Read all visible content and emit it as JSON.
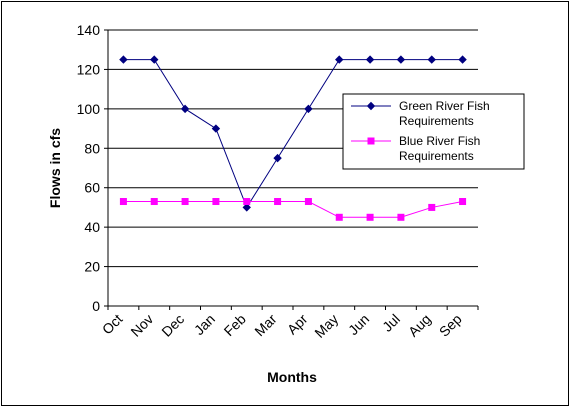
{
  "chart_data": {
    "type": "line",
    "categories": [
      "Oct",
      "Nov",
      "Dec",
      "Jan",
      "Feb",
      "Mar",
      "Apr",
      "May",
      "Jun",
      "Jul",
      "Aug",
      "Sep"
    ],
    "series": [
      {
        "name": "Green River Fish Requirements",
        "color": "#000080",
        "marker": "diamond",
        "values": [
          125,
          125,
          100,
          90,
          50,
          75,
          100,
          125,
          125,
          125,
          125,
          125
        ]
      },
      {
        "name": "Blue River Fish Requirements",
        "color": "#ff00ff",
        "marker": "square",
        "values": [
          53,
          53,
          53,
          53,
          53,
          53,
          53,
          45,
          45,
          45,
          50,
          53
        ]
      }
    ],
    "xlabel": "Months",
    "ylabel": "Flows in cfs",
    "ylim": [
      0,
      140
    ],
    "yticks": [
      0,
      20,
      40,
      60,
      80,
      100,
      120,
      140
    ],
    "grid": true,
    "legend": "right"
  }
}
